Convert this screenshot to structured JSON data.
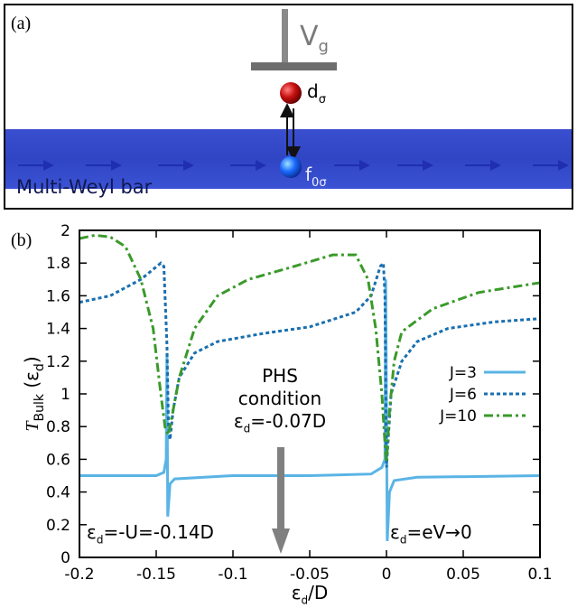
{
  "schematic": {
    "panel_label": "(a)",
    "gate": {
      "main": "V",
      "sub": "g"
    },
    "dot": {
      "main": "d",
      "sub": "σ"
    },
    "site": {
      "main": "f",
      "sub": "0σ"
    },
    "bar_label": "Multi-Weyl bar"
  },
  "chart_data": {
    "type": "line",
    "panel_label": "(b)",
    "ylabel": [
      {
        "text": "T",
        "style": "italic"
      },
      {
        "text": "Bulk",
        "sub": true
      },
      {
        "text": " (ε"
      },
      {
        "text": "d",
        "sub": true
      },
      {
        "text": ")"
      }
    ],
    "xlabel": [
      {
        "text": "ε"
      },
      {
        "text": "d",
        "sub": true
      },
      {
        "text": "/D"
      }
    ],
    "xlim": [
      -0.2,
      0.1
    ],
    "ylim": [
      0,
      2
    ],
    "xticks": [
      -0.2,
      -0.15,
      -0.1,
      -0.05,
      0,
      0.05,
      0.1
    ],
    "yticks": [
      0,
      0.2,
      0.4,
      0.6,
      0.8,
      1,
      1.2,
      1.4,
      1.6,
      1.8,
      2
    ],
    "grid": false,
    "legend": "center right",
    "series": [
      {
        "name": "J=3",
        "color": "#5ab4e5",
        "linestyle": "solid",
        "x": [
          -0.2,
          -0.15,
          -0.145,
          -0.1435,
          -0.143,
          -0.1425,
          -0.141,
          -0.138,
          -0.1,
          -0.05,
          -0.01,
          -0.003,
          -0.001,
          -0.0005,
          0.0005,
          0.002,
          0.005,
          0.02,
          0.1
        ],
        "values": [
          0.5,
          0.5,
          0.52,
          0.6,
          1.25,
          0.25,
          0.45,
          0.48,
          0.5,
          0.5,
          0.51,
          0.55,
          0.6,
          1.7,
          0.1,
          0.4,
          0.47,
          0.49,
          0.5
        ]
      },
      {
        "name": "J=6",
        "color": "#1a6faf",
        "linestyle": "dotted",
        "x": [
          -0.2,
          -0.18,
          -0.16,
          -0.147,
          -0.145,
          -0.143,
          -0.142,
          -0.141,
          -0.139,
          -0.135,
          -0.125,
          -0.11,
          -0.08,
          -0.05,
          -0.02,
          -0.01,
          -0.004,
          -0.002,
          -0.001,
          0,
          0.001,
          0.003,
          0.01,
          0.02,
          0.04,
          0.07,
          0.1
        ],
        "values": [
          1.56,
          1.6,
          1.7,
          1.8,
          1.78,
          1.3,
          0.8,
          0.72,
          0.9,
          1.1,
          1.25,
          1.32,
          1.37,
          1.41,
          1.5,
          1.6,
          1.78,
          1.8,
          1.6,
          0.55,
          0.7,
          1.0,
          1.2,
          1.32,
          1.4,
          1.44,
          1.46
        ]
      },
      {
        "name": "J=10",
        "color": "#3a9a2a",
        "linestyle": "dashdot",
        "x": [
          -0.2,
          -0.19,
          -0.18,
          -0.17,
          -0.16,
          -0.152,
          -0.147,
          -0.144,
          -0.142,
          -0.139,
          -0.135,
          -0.125,
          -0.11,
          -0.09,
          -0.06,
          -0.035,
          -0.02,
          -0.012,
          -0.007,
          -0.003,
          -0.001,
          0,
          0.002,
          0.005,
          0.01,
          0.03,
          0.06,
          0.1
        ],
        "values": [
          1.95,
          1.97,
          1.96,
          1.9,
          1.7,
          1.4,
          1.0,
          0.78,
          0.75,
          0.9,
          1.1,
          1.4,
          1.6,
          1.7,
          1.78,
          1.85,
          1.85,
          1.7,
          1.4,
          1.0,
          0.7,
          0.58,
          0.9,
          1.2,
          1.38,
          1.52,
          1.62,
          1.68
        ]
      }
    ],
    "annotations": {
      "phs": [
        [
          {
            "text": "PHS"
          }
        ],
        [
          {
            "text": "condition"
          }
        ],
        [
          {
            "text": "ε"
          },
          {
            "text": "d",
            "sub": true
          },
          {
            "text": "=-0.07D"
          }
        ]
      ],
      "left": [
        {
          "text": "ε"
        },
        {
          "text": "d",
          "sub": true
        },
        {
          "text": "=-U=-0.14D"
        }
      ],
      "right": [
        {
          "text": "ε"
        },
        {
          "text": "d",
          "sub": true
        },
        {
          "text": "=eV→0"
        }
      ]
    }
  }
}
